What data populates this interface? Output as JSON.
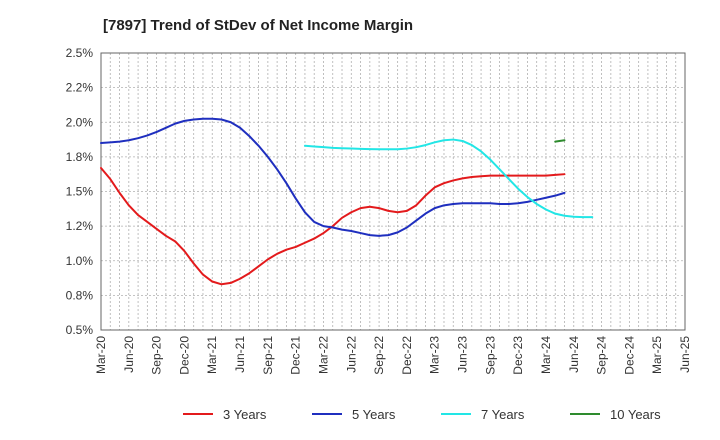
{
  "chart_data": {
    "type": "line",
    "title": "[7897]  Trend of StDev of Net Income Margin",
    "xlabel": "",
    "ylabel": "",
    "ylim": [
      0.5,
      2.5
    ],
    "y_ticks": [
      "0.5%",
      "0.8%",
      "1.0%",
      "1.2%",
      "1.5%",
      "1.8%",
      "2.0%",
      "2.2%",
      "2.5%"
    ],
    "x_ticks": [
      "Mar-20",
      "Jun-20",
      "Sep-20",
      "Dec-20",
      "Mar-21",
      "Jun-21",
      "Sep-21",
      "Dec-21",
      "Mar-22",
      "Jun-22",
      "Sep-22",
      "Dec-22",
      "Mar-23",
      "Jun-23",
      "Sep-23",
      "Dec-23",
      "Mar-24",
      "Jun-24",
      "Sep-24",
      "Dec-24",
      "Mar-25",
      "Jun-25"
    ],
    "grid": true,
    "legend_position": "bottom",
    "series": [
      {
        "name": "3 Years",
        "color": "#e31a1c",
        "points": [
          [
            0,
            1.67
          ],
          [
            1,
            1.59
          ],
          [
            2,
            1.49
          ],
          [
            3,
            1.4
          ],
          [
            4,
            1.33
          ],
          [
            5,
            1.28
          ],
          [
            6,
            1.23
          ],
          [
            7,
            1.18
          ],
          [
            8,
            1.14
          ],
          [
            9,
            1.07
          ],
          [
            10,
            0.98
          ],
          [
            11,
            0.9
          ],
          [
            12,
            0.85
          ],
          [
            13,
            0.83
          ],
          [
            14,
            0.84
          ],
          [
            15,
            0.87
          ],
          [
            16,
            0.91
          ],
          [
            17,
            0.96
          ],
          [
            18,
            1.01
          ],
          [
            19,
            1.05
          ],
          [
            20,
            1.08
          ],
          [
            21,
            1.1
          ],
          [
            22,
            1.13
          ],
          [
            23,
            1.16
          ],
          [
            24,
            1.2
          ],
          [
            25,
            1.25
          ],
          [
            26,
            1.31
          ],
          [
            27,
            1.35
          ],
          [
            28,
            1.38
          ],
          [
            29,
            1.39
          ],
          [
            30,
            1.38
          ],
          [
            31,
            1.36
          ],
          [
            32,
            1.35
          ],
          [
            33,
            1.36
          ],
          [
            34,
            1.4
          ],
          [
            35,
            1.47
          ],
          [
            36,
            1.53
          ],
          [
            37,
            1.56
          ],
          [
            38,
            1.58
          ],
          [
            39,
            1.595
          ],
          [
            40,
            1.605
          ],
          [
            41,
            1.61
          ],
          [
            42,
            1.615
          ],
          [
            43,
            1.615
          ],
          [
            44,
            1.615
          ],
          [
            45,
            1.615
          ],
          [
            46,
            1.615
          ],
          [
            47,
            1.615
          ],
          [
            48,
            1.615
          ],
          [
            49,
            1.62
          ],
          [
            50,
            1.625
          ]
        ]
      },
      {
        "name": "5 Years",
        "color": "#1f2fbf",
        "points": [
          [
            0,
            1.85
          ],
          [
            1,
            1.855
          ],
          [
            2,
            1.86
          ],
          [
            3,
            1.87
          ],
          [
            4,
            1.885
          ],
          [
            5,
            1.905
          ],
          [
            6,
            1.93
          ],
          [
            7,
            1.96
          ],
          [
            8,
            1.99
          ],
          [
            9,
            2.01
          ],
          [
            10,
            2.02
          ],
          [
            11,
            2.025
          ],
          [
            12,
            2.025
          ],
          [
            13,
            2.02
          ],
          [
            14,
            2.0
          ],
          [
            15,
            1.96
          ],
          [
            16,
            1.9
          ],
          [
            17,
            1.83
          ],
          [
            18,
            1.75
          ],
          [
            19,
            1.66
          ],
          [
            20,
            1.56
          ],
          [
            21,
            1.45
          ],
          [
            22,
            1.35
          ],
          [
            23,
            1.28
          ],
          [
            24,
            1.25
          ],
          [
            25,
            1.24
          ],
          [
            26,
            1.225
          ],
          [
            27,
            1.215
          ],
          [
            28,
            1.2
          ],
          [
            29,
            1.185
          ],
          [
            30,
            1.18
          ],
          [
            31,
            1.185
          ],
          [
            32,
            1.205
          ],
          [
            33,
            1.24
          ],
          [
            34,
            1.29
          ],
          [
            35,
            1.34
          ],
          [
            36,
            1.38
          ],
          [
            37,
            1.4
          ],
          [
            38,
            1.41
          ],
          [
            39,
            1.415
          ],
          [
            40,
            1.415
          ],
          [
            41,
            1.415
          ],
          [
            42,
            1.415
          ],
          [
            43,
            1.41
          ],
          [
            44,
            1.41
          ],
          [
            45,
            1.415
          ],
          [
            46,
            1.425
          ],
          [
            47,
            1.44
          ],
          [
            48,
            1.455
          ],
          [
            49,
            1.47
          ],
          [
            50,
            1.49
          ]
        ]
      },
      {
        "name": "7 Years",
        "color": "#22e6e6",
        "points": [
          [
            22,
            1.83
          ],
          [
            23,
            1.825
          ],
          [
            24,
            1.82
          ],
          [
            25,
            1.815
          ],
          [
            26,
            1.812
          ],
          [
            27,
            1.81
          ],
          [
            28,
            1.808
          ],
          [
            29,
            1.806
          ],
          [
            30,
            1.805
          ],
          [
            31,
            1.805
          ],
          [
            32,
            1.805
          ],
          [
            33,
            1.81
          ],
          [
            34,
            1.82
          ],
          [
            35,
            1.835
          ],
          [
            36,
            1.855
          ],
          [
            37,
            1.87
          ],
          [
            38,
            1.875
          ],
          [
            39,
            1.865
          ],
          [
            40,
            1.835
          ],
          [
            41,
            1.79
          ],
          [
            42,
            1.73
          ],
          [
            43,
            1.66
          ],
          [
            44,
            1.59
          ],
          [
            45,
            1.52
          ],
          [
            46,
            1.46
          ],
          [
            47,
            1.41
          ],
          [
            48,
            1.37
          ],
          [
            49,
            1.34
          ],
          [
            50,
            1.325
          ],
          [
            51,
            1.318
          ],
          [
            52,
            1.315
          ],
          [
            53,
            1.315
          ]
        ]
      },
      {
        "name": "10 Years",
        "color": "#2e8b2e",
        "points": [
          [
            49,
            1.86
          ],
          [
            50,
            1.87
          ]
        ]
      }
    ]
  }
}
